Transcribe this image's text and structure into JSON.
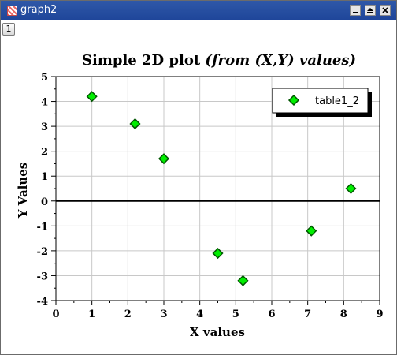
{
  "window": {
    "title": "graph2"
  },
  "layer_tab": {
    "label": "1"
  },
  "colors": {
    "titlebar": "#1f469a",
    "marker_fill": "#00ee00",
    "marker_stroke": "#005500",
    "grid": "#c8c8c8"
  },
  "chart_data": {
    "type": "scatter",
    "title_main": "Simple 2D plot ",
    "title_italic": "(from (X,Y) values)",
    "xlabel": "X values",
    "ylabel": "Y Values",
    "xlim": [
      0,
      9
    ],
    "ylim": [
      -4,
      5
    ],
    "x_ticks": [
      0,
      1,
      2,
      3,
      4,
      5,
      6,
      7,
      8,
      9
    ],
    "y_ticks": [
      -4,
      -3,
      -2,
      -1,
      0,
      1,
      2,
      3,
      4,
      5
    ],
    "grid": true,
    "legend_position": "top-right",
    "series": [
      {
        "name": "table1_2",
        "marker": "diamond",
        "x": [
          1,
          2.2,
          3,
          4.5,
          5.2,
          7.1,
          8.2
        ],
        "y": [
          4.2,
          3.1,
          1.7,
          -2.1,
          -3.2,
          -1.2,
          0.5
        ]
      }
    ]
  }
}
